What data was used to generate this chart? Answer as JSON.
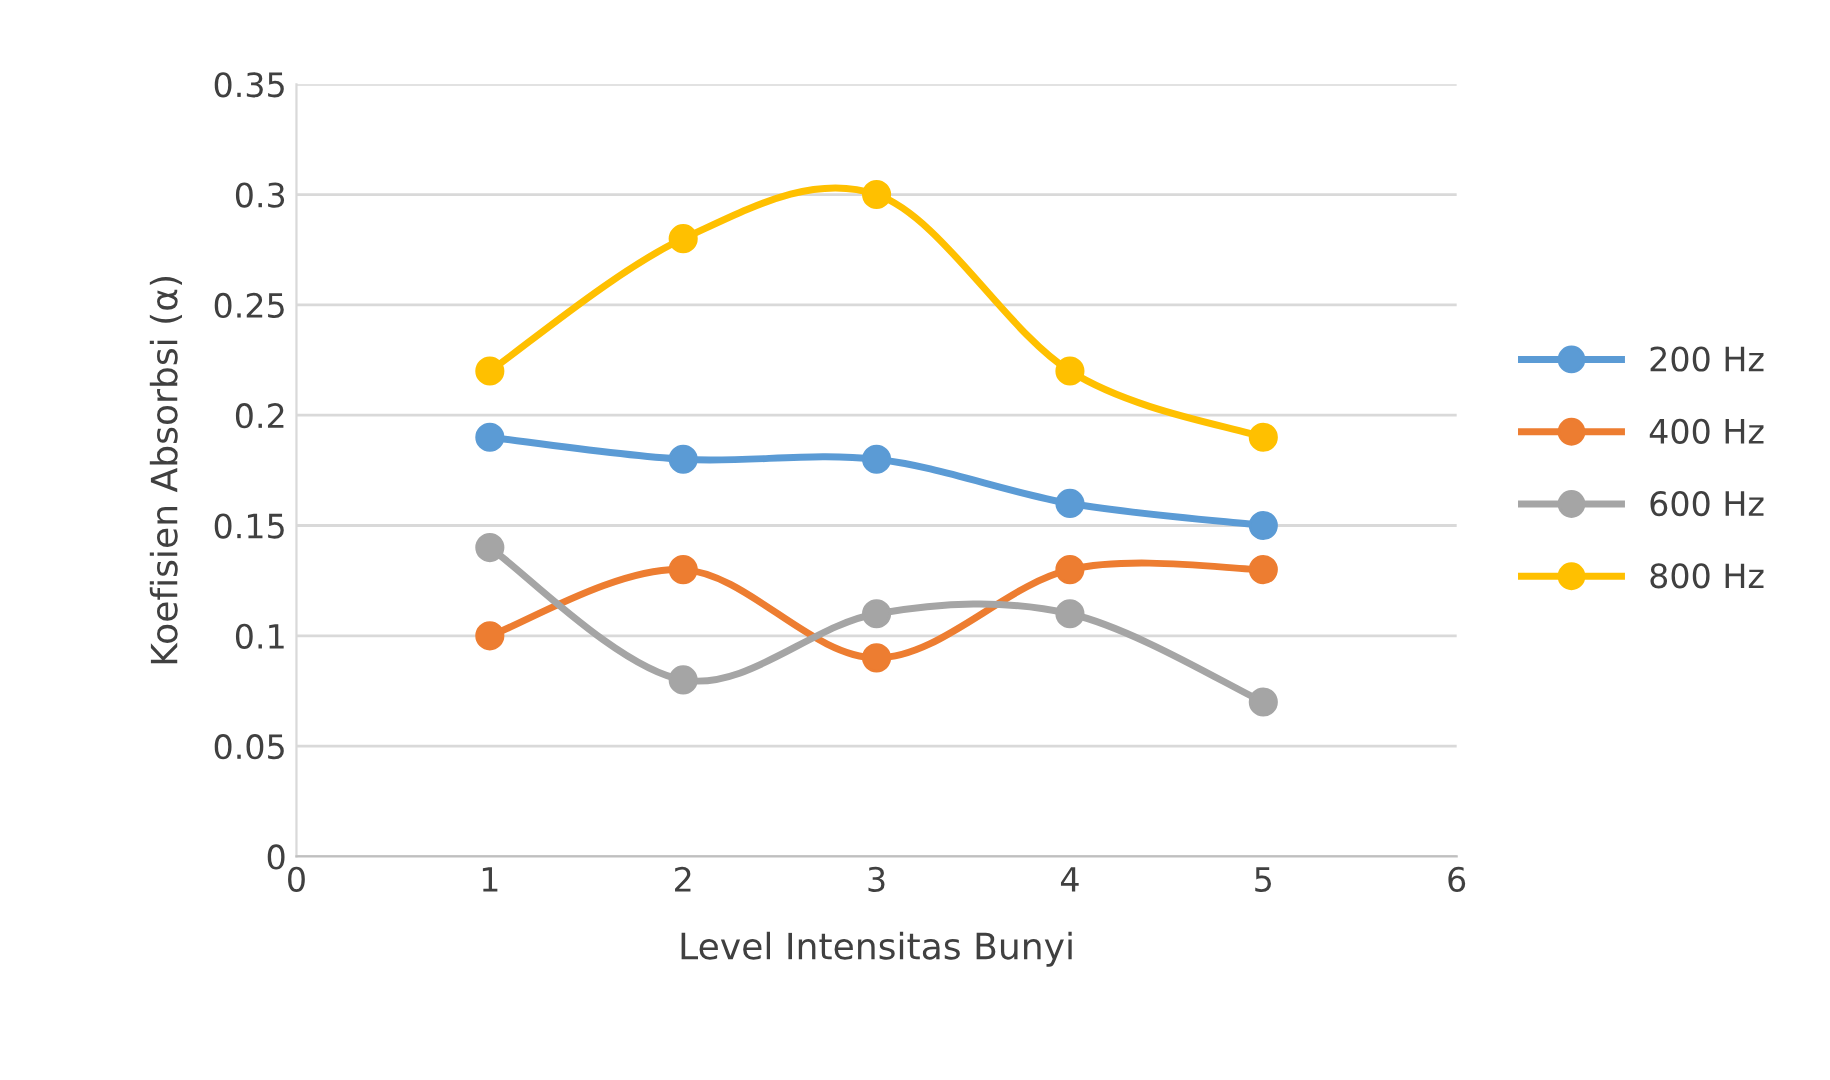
{
  "chart_data": {
    "type": "line",
    "xlabel": "Level Intensitas Bunyi",
    "ylabel": "Koefisien Absorbsi (α)",
    "x": [
      1,
      2,
      3,
      4,
      5
    ],
    "series": [
      {
        "name": "200 Hz",
        "color": "#5b9bd5",
        "values": [
          0.19,
          0.18,
          0.18,
          0.16,
          0.15
        ]
      },
      {
        "name": "400 Hz",
        "color": "#ed7d31",
        "values": [
          0.1,
          0.13,
          0.09,
          0.13,
          0.13
        ]
      },
      {
        "name": "600 Hz",
        "color": "#a5a5a5",
        "values": [
          0.14,
          0.08,
          0.11,
          0.11,
          0.07
        ]
      },
      {
        "name": "800 Hz",
        "color": "#ffc000",
        "values": [
          0.22,
          0.28,
          0.3,
          0.22,
          0.19
        ]
      }
    ],
    "xlim": [
      0,
      6
    ],
    "xticks": [
      0,
      1,
      2,
      3,
      4,
      5,
      6
    ],
    "ylim": [
      0,
      0.35
    ],
    "yticks": [
      0,
      0.05,
      0.1,
      0.15,
      0.2,
      0.25,
      0.3,
      0.35
    ],
    "grid": "y",
    "legend": "right",
    "marker": "circle",
    "line_style": "solid"
  }
}
